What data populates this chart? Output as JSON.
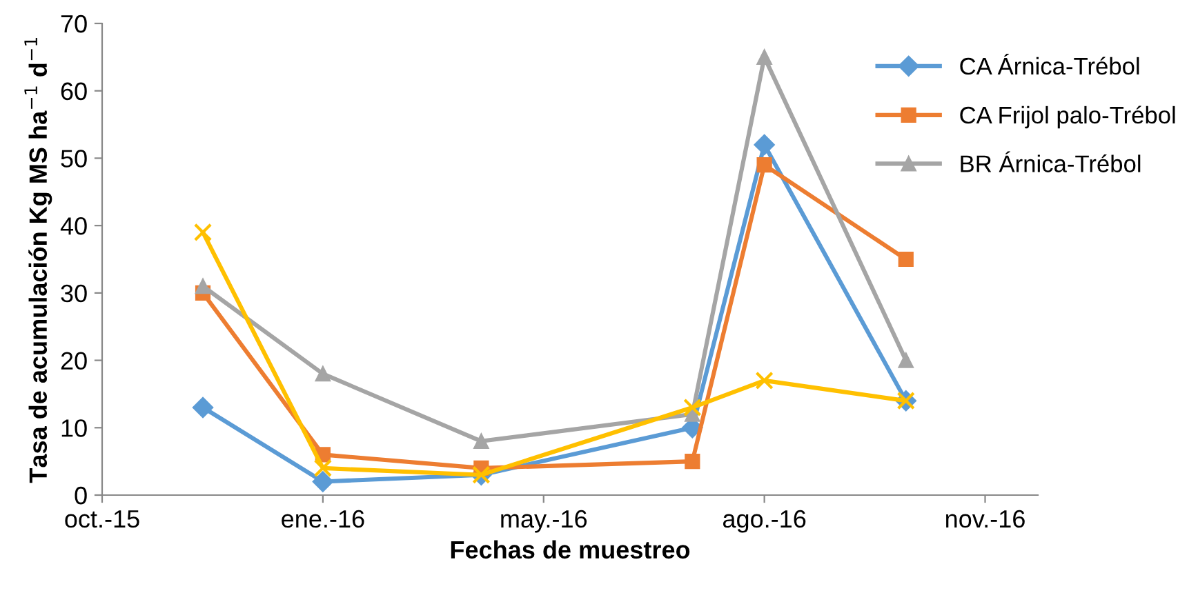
{
  "chart_data": {
    "type": "line",
    "xlabel": "Fechas de muestreo",
    "ylabel": "Tasa de acumulación Kg MS ha$^{−1}$ d$^{−1}$",
    "x": [
      "2015-12-12",
      "2016-01-31",
      "2016-04-06",
      "2016-07-03",
      "2016-08-02",
      "2016-09-30"
    ],
    "series": [
      {
        "name": "CA Árnica-Trébol",
        "color": "#5b9bd5",
        "marker": "diamond",
        "values": [
          13,
          2,
          3,
          10,
          52,
          14
        ]
      },
      {
        "name": "CA Frijol palo-Trébol",
        "color": "#ed7d31",
        "marker": "square",
        "values": [
          30,
          6,
          4,
          5,
          49,
          35
        ]
      },
      {
        "name": "BR Árnica-Trébol",
        "color": "#a5a5a5",
        "marker": "triangle",
        "values": [
          31,
          18,
          8,
          12,
          65,
          20
        ]
      },
      {
        "color": "#ffc000",
        "marker": "cross",
        "values": [
          39,
          4,
          3,
          13,
          17,
          14
        ]
      }
    ],
    "xlim": [
      "2015-10-31",
      "2016-11-24"
    ],
    "xticks": [
      {
        "value": "2015-10-31",
        "label": "oct.-15"
      },
      {
        "value": "2016-01-31",
        "label": "ene.-16"
      },
      {
        "value": "2016-05-02",
        "label": "may.-16"
      },
      {
        "value": "2016-08-02",
        "label": "ago.-16"
      },
      {
        "value": "2016-11-02",
        "label": "nov.-16"
      }
    ],
    "ylim": [
      0,
      70
    ],
    "yticks": [
      0,
      10,
      20,
      30,
      40,
      50,
      60,
      70
    ],
    "grid": false,
    "legend": "right",
    "line_style": "solid"
  }
}
